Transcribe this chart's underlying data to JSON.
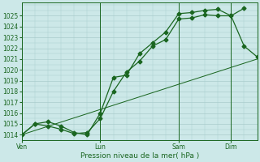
{
  "background_color": "#cce8e8",
  "grid_color": "#aacccc",
  "line_color": "#1a6620",
  "title": "Pression niveau de la mer( hPa )",
  "ylim": [
    1013.5,
    1026.2
  ],
  "yticks": [
    1014,
    1015,
    1016,
    1017,
    1018,
    1019,
    1020,
    1021,
    1022,
    1023,
    1024,
    1025
  ],
  "xtick_labels": [
    "Ven",
    "Lun",
    "Sam",
    "Dim"
  ],
  "xtick_positions": [
    0,
    3,
    6,
    8
  ],
  "xlim": [
    0,
    9.0
  ],
  "series1_x": [
    0,
    0.5,
    1.0,
    1.5,
    2.0,
    2.5,
    3.0,
    3.5,
    4.0,
    4.5,
    5.0,
    5.5,
    6.0,
    6.5,
    7.0,
    7.5,
    8.0,
    8.5
  ],
  "series1_y": [
    1014.0,
    1015.0,
    1015.2,
    1014.8,
    1014.2,
    1014.0,
    1016.0,
    1019.3,
    1019.5,
    1021.5,
    1022.5,
    1023.5,
    1025.2,
    1025.3,
    1025.5,
    1025.6,
    1025.0,
    1025.7
  ],
  "series2_x": [
    0,
    0.5,
    1.0,
    1.5,
    2.0,
    2.5,
    3.0,
    3.5,
    4.0,
    4.5,
    5.0,
    5.5,
    6.0,
    6.5,
    7.0,
    7.5,
    8.0,
    8.5,
    9.0
  ],
  "series2_y": [
    1014.0,
    1015.0,
    1014.8,
    1014.5,
    1014.1,
    1014.2,
    1015.5,
    1018.0,
    1019.8,
    1020.8,
    1022.2,
    1022.8,
    1024.7,
    1024.8,
    1025.1,
    1025.0,
    1025.0,
    1022.2,
    1021.2
  ],
  "series3_x": [
    0,
    9.0
  ],
  "series3_y": [
    1014.0,
    1021.0
  ],
  "vlines_x": [
    0,
    3,
    6,
    8
  ],
  "markersize": 2.5,
  "linewidth": 0.9,
  "tick_fontsize": 5.5,
  "xlabel_fontsize": 6.5
}
